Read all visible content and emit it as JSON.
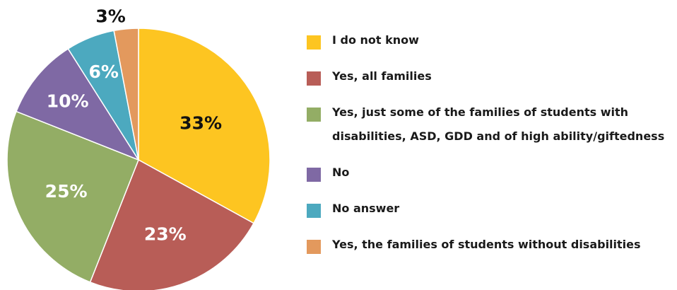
{
  "chart_data": {
    "type": "pie",
    "slices": [
      {
        "label": "I do not know",
        "value": 33,
        "value_label": "33%",
        "color": "#FDC521",
        "label_color": "#111111"
      },
      {
        "label": "Yes, all families",
        "value": 23,
        "value_label": "23%",
        "color": "#B85D57",
        "label_color": "#ffffff"
      },
      {
        "label": "Yes, just some of the families of students with disabilities, ASD, GDD and of high ability/giftedness",
        "value": 25,
        "value_label": "25%",
        "color": "#93AD65",
        "label_color": "#ffffff"
      },
      {
        "label": "No",
        "value": 10,
        "value_label": "10%",
        "color": "#7F69A4",
        "label_color": "#ffffff"
      },
      {
        "label": "No answer",
        "value": 6,
        "value_label": "6%",
        "color": "#4CA9BF",
        "label_color": "#ffffff"
      },
      {
        "label": "Yes, the families of students without disabilities",
        "value": 3,
        "value_label": "3%",
        "color": "#E3995D",
        "label_color": "#111111"
      }
    ],
    "start_angle_deg": 0,
    "direction": "clockwise",
    "legend_position": "right"
  }
}
